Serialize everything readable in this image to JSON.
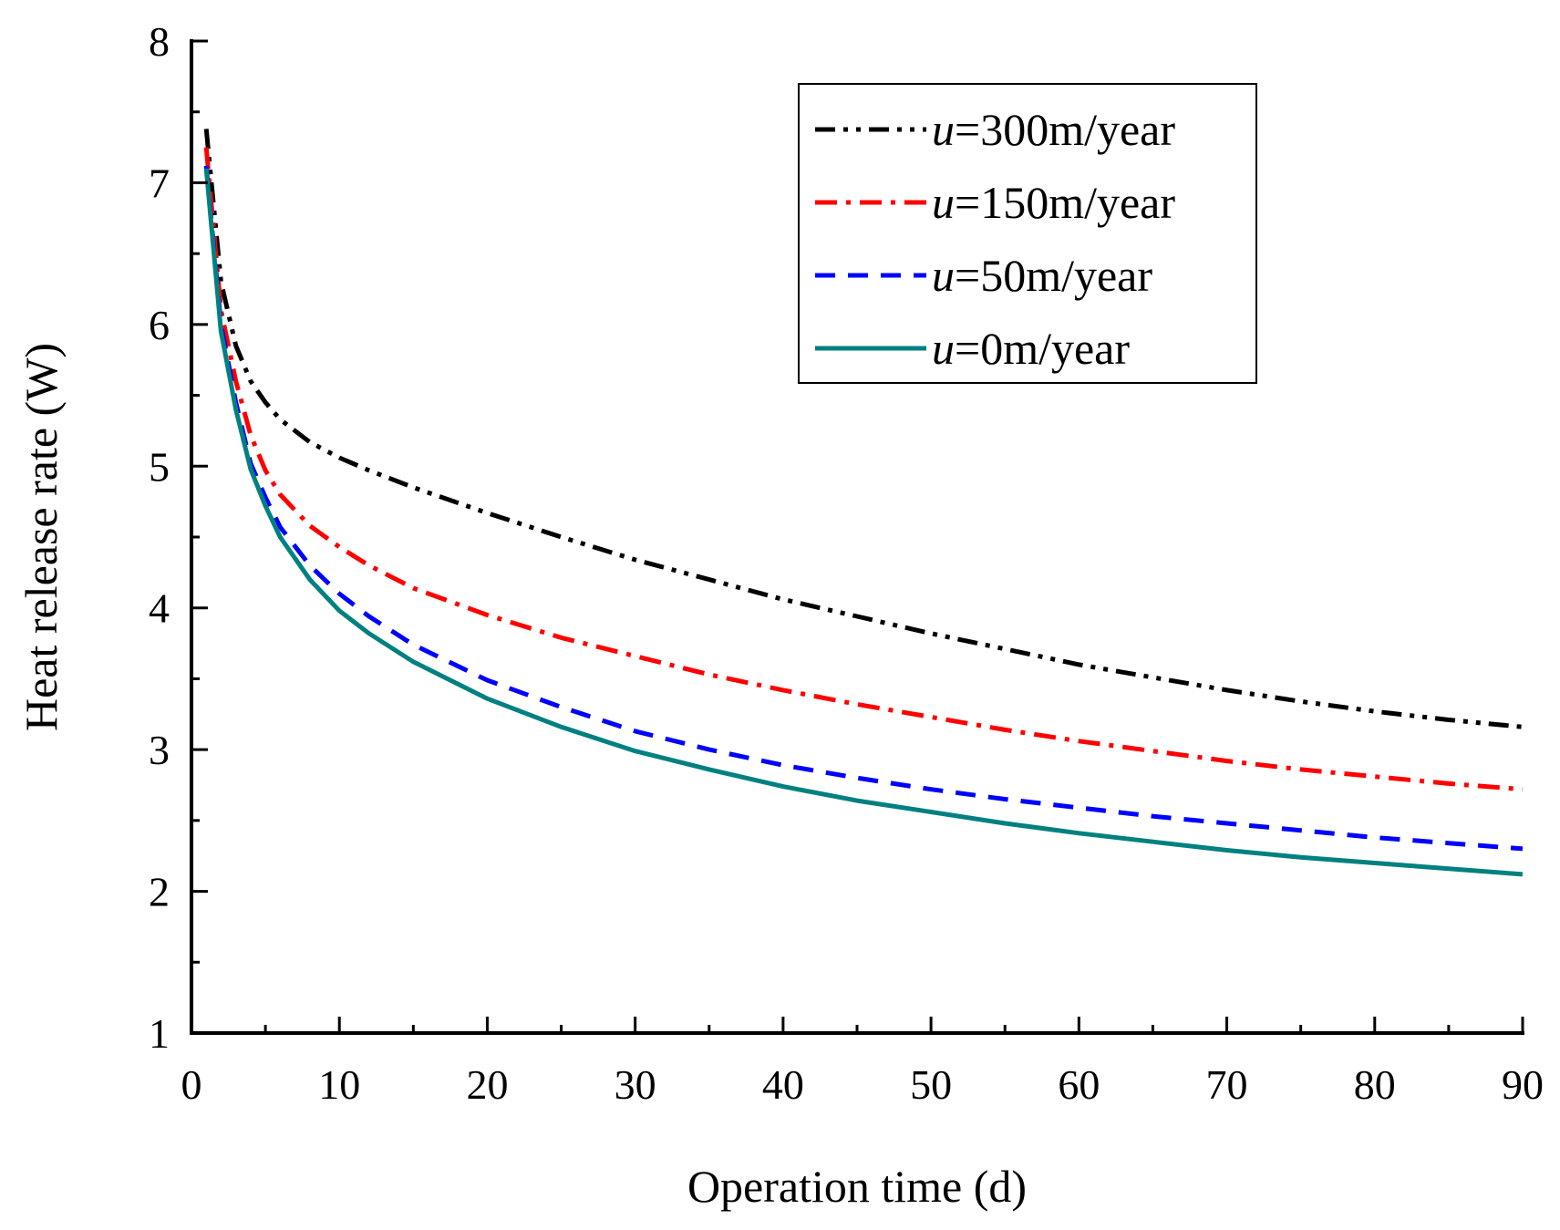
{
  "chart_data": {
    "type": "line",
    "title": "",
    "xlabel": "Operation time  (d)",
    "ylabel": "Heat release rate (W)",
    "xlim": [
      0,
      90
    ],
    "ylim": [
      1,
      8
    ],
    "x_ticks": [
      0,
      10,
      20,
      30,
      40,
      50,
      60,
      70,
      80,
      90
    ],
    "x_tick_labels": [
      "0",
      "10",
      "20",
      "30",
      "40",
      "50",
      "60",
      "70",
      "80",
      "90"
    ],
    "y_ticks": [
      1,
      2,
      3,
      4,
      5,
      6,
      7,
      8
    ],
    "y_tick_labels": [
      "1",
      "2",
      "3",
      "4",
      "5",
      "6",
      "7",
      "8"
    ],
    "x_minor_step": 5,
    "y_minor_step": 0.5,
    "grid": false,
    "legend_position": "top-right",
    "x": [
      1,
      2,
      3,
      4,
      5,
      6,
      8,
      10,
      12,
      15,
      20,
      25,
      30,
      35,
      40,
      45,
      50,
      55,
      60,
      65,
      70,
      75,
      80,
      85,
      90
    ],
    "series": [
      {
        "name": "u=300m/year",
        "label_var": "u",
        "label_rest": "=300m/year",
        "color": "#000000",
        "dash": "dash-dot-dot",
        "values": [
          7.38,
          6.3,
          5.85,
          5.6,
          5.45,
          5.33,
          5.17,
          5.06,
          4.97,
          4.85,
          4.67,
          4.5,
          4.34,
          4.2,
          4.06,
          3.94,
          3.82,
          3.71,
          3.6,
          3.51,
          3.42,
          3.34,
          3.27,
          3.21,
          3.16
        ]
      },
      {
        "name": "u=150m/year",
        "label_var": "u",
        "label_rest": "=150m/year",
        "color": "#ff0000",
        "dash": "dash-dot",
        "values": [
          7.25,
          6.1,
          5.6,
          5.22,
          4.97,
          4.8,
          4.58,
          4.43,
          4.3,
          4.14,
          3.95,
          3.79,
          3.66,
          3.53,
          3.42,
          3.32,
          3.23,
          3.14,
          3.06,
          2.99,
          2.92,
          2.86,
          2.81,
          2.76,
          2.72
        ]
      },
      {
        "name": "u=50m/year",
        "label_var": "u",
        "label_rest": "=50m/year",
        "color": "#0000ff",
        "dash": "dash",
        "values": [
          7.12,
          6.0,
          5.45,
          5.02,
          4.78,
          4.57,
          4.3,
          4.1,
          3.94,
          3.74,
          3.49,
          3.3,
          3.13,
          3.0,
          2.89,
          2.8,
          2.72,
          2.65,
          2.59,
          2.53,
          2.48,
          2.43,
          2.38,
          2.34,
          2.3
        ]
      },
      {
        "name": "u=0m/year",
        "label_var": "u",
        "label_rest": "=0m/year",
        "color": "#008080",
        "dash": "solid",
        "values": [
          7.1,
          5.95,
          5.4,
          4.98,
          4.72,
          4.5,
          4.2,
          3.98,
          3.82,
          3.62,
          3.36,
          3.16,
          2.99,
          2.86,
          2.74,
          2.64,
          2.56,
          2.48,
          2.41,
          2.35,
          2.29,
          2.24,
          2.2,
          2.16,
          2.12
        ]
      }
    ]
  }
}
